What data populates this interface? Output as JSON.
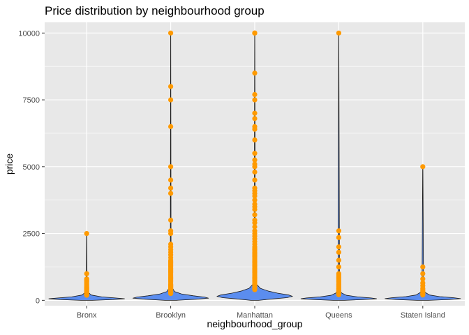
{
  "chart_data": {
    "type": "violin",
    "title": "Price distribution by neighbourhood group",
    "xlabel": "neighbourhood_group",
    "ylabel": "price",
    "ylim": [
      -200,
      10400
    ],
    "yticks": [
      0,
      2500,
      5000,
      7500,
      10000
    ],
    "ytick_labels": [
      "0",
      "2500",
      "5000",
      "7500",
      "10000"
    ],
    "grid": true,
    "colors": {
      "panel": "#e8e8e8",
      "grid": "#ffffff",
      "violin_fill": "#5b8def",
      "violin_stroke": "#1a1a1a",
      "outlier": "#ff9a00"
    },
    "categories": [
      "Bronx",
      "Brooklyn",
      "Manhattan",
      "Queens",
      "Staten Island"
    ],
    "groups": [
      {
        "name": "Bronx",
        "max": 2500,
        "density": [
          [
            0,
            0.15
          ],
          [
            30,
            0.7
          ],
          [
            60,
            1.0
          ],
          [
            90,
            0.75
          ],
          [
            130,
            0.4
          ],
          [
            200,
            0.12
          ],
          [
            300,
            0.04
          ],
          [
            500,
            0.01
          ],
          [
            2500,
            0.003
          ]
        ],
        "outliers": [
          2500,
          1000,
          800,
          750,
          700,
          650,
          600,
          550,
          500,
          470,
          440,
          410,
          380,
          350,
          320,
          300,
          280,
          260,
          240,
          225,
          210,
          200,
          190
        ]
      },
      {
        "name": "Brooklyn",
        "max": 10000,
        "density": [
          [
            0,
            0.15
          ],
          [
            40,
            0.65
          ],
          [
            80,
            1.0
          ],
          [
            120,
            0.9
          ],
          [
            170,
            0.6
          ],
          [
            240,
            0.28
          ],
          [
            330,
            0.1
          ],
          [
            500,
            0.03
          ],
          [
            800,
            0.01
          ],
          [
            10000,
            0.002
          ]
        ],
        "outliers": [
          10000,
          8000,
          7500,
          6500,
          5000,
          4500,
          4200,
          4000,
          3000,
          2600,
          2500,
          2100,
          2000,
          1900,
          1800,
          1700,
          1600,
          1500,
          1450,
          1400,
          1350,
          1300,
          1250,
          1200,
          1150,
          1100,
          1050,
          1000,
          950,
          900,
          850,
          800,
          750,
          700,
          650,
          600,
          575,
          550,
          525,
          500,
          475,
          450,
          425,
          400,
          380,
          360,
          340,
          320,
          300,
          285,
          270,
          255
        ]
      },
      {
        "name": "Manhattan",
        "max": 10000,
        "density": [
          [
            0,
            0.1
          ],
          [
            50,
            0.45
          ],
          [
            100,
            0.85
          ],
          [
            150,
            1.0
          ],
          [
            200,
            0.9
          ],
          [
            270,
            0.6
          ],
          [
            350,
            0.35
          ],
          [
            450,
            0.15
          ],
          [
            600,
            0.05
          ],
          [
            900,
            0.015
          ],
          [
            10000,
            0.002
          ]
        ],
        "outliers": [
          10000,
          10000,
          9999,
          8500,
          7700,
          7500,
          7000,
          6800,
          6500,
          6400,
          6000,
          5500,
          5250,
          5100,
          5000,
          4800,
          4500,
          4200,
          4100,
          4000,
          3900,
          3750,
          3600,
          3500,
          3400,
          3200,
          3000,
          2900,
          2750,
          2600,
          2500,
          2400,
          2300,
          2200,
          2100,
          2000,
          1950,
          1900,
          1850,
          1800,
          1750,
          1700,
          1650,
          1600,
          1550,
          1500,
          1450,
          1400,
          1350,
          1300,
          1250,
          1200,
          1150,
          1100,
          1050,
          1000,
          950,
          900,
          850,
          800,
          750,
          700,
          650,
          600,
          560,
          520,
          480,
          450,
          420,
          400
        ]
      },
      {
        "name": "Queens",
        "max": 10000,
        "density": [
          [
            0,
            0.15
          ],
          [
            30,
            0.65
          ],
          [
            60,
            1.0
          ],
          [
            90,
            0.85
          ],
          [
            130,
            0.5
          ],
          [
            190,
            0.2
          ],
          [
            280,
            0.07
          ],
          [
            450,
            0.02
          ],
          [
            10000,
            0.002
          ]
        ],
        "outliers": [
          10000,
          2600,
          2350,
          2000,
          1800,
          1500,
          1250,
          1000,
          950,
          900,
          850,
          800,
          750,
          700,
          650,
          600,
          560,
          520,
          480,
          450,
          420,
          390,
          360,
          330,
          300,
          280,
          260,
          240,
          225,
          210
        ]
      },
      {
        "name": "Staten Island",
        "max": 5000,
        "density": [
          [
            0,
            0.15
          ],
          [
            30,
            0.7
          ],
          [
            65,
            1.0
          ],
          [
            100,
            0.8
          ],
          [
            140,
            0.45
          ],
          [
            200,
            0.18
          ],
          [
            300,
            0.06
          ],
          [
            500,
            0.02
          ],
          [
            5000,
            0.003
          ]
        ],
        "outliers": [
          5000,
          1250,
          1000,
          800,
          650,
          550,
          450,
          400,
          350,
          300,
          260,
          230,
          200
        ]
      }
    ]
  }
}
